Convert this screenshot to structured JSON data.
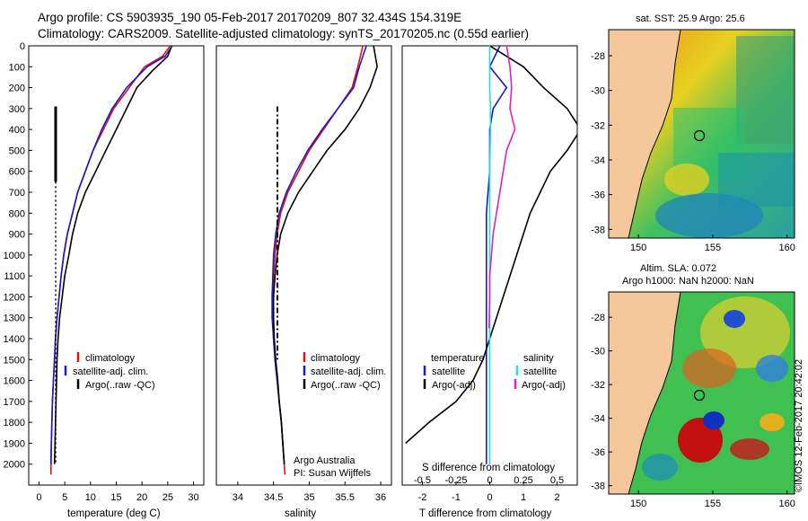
{
  "header": {
    "line1": "Argo profile: CS 5903935_190 05-Feb-2017 20170209_807 32.434S 154.319E",
    "line2": "Climatology: CARS2009. Satellite-adjusted climatology: synTS_20170205.nc (0.55d earlier)"
  },
  "colors": {
    "red": "#e01010",
    "blue": "#1a1acc",
    "black": "#000000",
    "cyan": "#22e0e0",
    "magenta": "#dd22cc",
    "land": "#f4c89a"
  },
  "chart_data": [
    {
      "type": "line",
      "name": "temperature-panel",
      "xlabel": "temperature (deg C)",
      "ylabel": "",
      "xlim": [
        -2,
        32
      ],
      "ylim": [
        2100,
        0
      ],
      "y_reversed": true,
      "xticks": [
        "0",
        "5",
        "10",
        "15",
        "20",
        "25",
        "30"
      ],
      "yticks": [
        "0",
        "100",
        "200",
        "300",
        "400",
        "500",
        "600",
        "700",
        "800",
        "900",
        "1000",
        "1100",
        "1200",
        "1300",
        "1400",
        "1500",
        "1600",
        "1700",
        "1800",
        "1900",
        "2000"
      ],
      "legend": [
        "climatology",
        "satellite-adj. clim.",
        "Argo(..raw -QC)"
      ],
      "series": [
        {
          "name": "climatology",
          "color": "red",
          "x": [
            25.5,
            24.0,
            20.5,
            17.5,
            14.5,
            12.5,
            10.5,
            9.0,
            7.5,
            6.5,
            5.5,
            4.8,
            4.3,
            3.9,
            3.5,
            3.2,
            3.0,
            2.8,
            2.6,
            2.5,
            2.4,
            2.3
          ],
          "y": [
            0,
            50,
            100,
            200,
            300,
            400,
            500,
            600,
            700,
            800,
            900,
            1000,
            1100,
            1200,
            1300,
            1400,
            1500,
            1600,
            1700,
            1800,
            1900,
            2050
          ]
        },
        {
          "name": "satellite-adj. clim.",
          "color": "blue",
          "x": [
            25.9,
            24.5,
            21.0,
            17.0,
            14.2,
            12.2,
            10.5,
            9.0,
            7.5,
            6.5,
            5.5,
            4.8,
            4.3,
            3.9,
            3.5,
            3.2,
            3.0,
            2.8,
            2.6,
            2.5,
            2.4,
            2.3
          ],
          "y": [
            0,
            50,
            100,
            200,
            300,
            400,
            500,
            600,
            700,
            800,
            900,
            1000,
            1100,
            1200,
            1300,
            1400,
            1500,
            1600,
            1700,
            1800,
            1900,
            2000
          ]
        },
        {
          "name": "Argo(..raw -QC)",
          "color": "black",
          "x": [
            25.6,
            25.0,
            22.0,
            19.0,
            17.0,
            15.0,
            13.0,
            11.0,
            9.0,
            7.5,
            6.5,
            5.8,
            5.0,
            4.5,
            4.0,
            3.7,
            3.5,
            3.4,
            3.3,
            3.2,
            3.1,
            3.0
          ],
          "y": [
            10,
            50,
            120,
            200,
            300,
            400,
            500,
            600,
            700,
            800,
            900,
            1000,
            1100,
            1200,
            1300,
            1400,
            1500,
            1600,
            1700,
            1800,
            1900,
            2000
          ]
        }
      ]
    },
    {
      "type": "line",
      "name": "salinity-panel",
      "xlabel": "salinity",
      "xlim": [
        33.7,
        36.15
      ],
      "ylim": [
        2100,
        0
      ],
      "y_reversed": true,
      "xticks": [
        "34",
        "34.5",
        "35",
        "35.5",
        "36"
      ],
      "legend": [
        "climatology",
        "satellite-adj. clim.",
        "Argo(..raw -QC)"
      ],
      "annotation": [
        "Argo Australia",
        "PI: Susan Wijffels"
      ],
      "series": [
        {
          "name": "climatology",
          "color": "red",
          "x": [
            35.75,
            35.68,
            35.6,
            35.4,
            35.2,
            35.0,
            34.85,
            34.7,
            34.6,
            34.55,
            34.52,
            34.5,
            34.49,
            34.49,
            34.5,
            34.52,
            34.55,
            34.58,
            34.61,
            34.63,
            34.65,
            34.66
          ],
          "y": [
            0,
            100,
            200,
            300,
            400,
            500,
            600,
            700,
            800,
            900,
            1000,
            1100,
            1200,
            1300,
            1400,
            1500,
            1600,
            1700,
            1800,
            1900,
            2000,
            2050
          ]
        },
        {
          "name": "satellite-adj. clim.",
          "color": "blue",
          "x": [
            35.8,
            35.7,
            35.62,
            35.4,
            35.18,
            34.98,
            34.82,
            34.68,
            34.58,
            34.53,
            34.5,
            34.49,
            34.48,
            34.48,
            34.5,
            34.52,
            34.55,
            34.58,
            34.61,
            34.63,
            34.65
          ],
          "y": [
            0,
            100,
            200,
            300,
            400,
            500,
            600,
            700,
            800,
            900,
            1000,
            1100,
            1200,
            1300,
            1400,
            1500,
            1600,
            1700,
            1800,
            1900,
            2000
          ]
        },
        {
          "name": "Argo(..raw -QC)",
          "color": "black",
          "x": [
            35.9,
            35.95,
            35.85,
            35.7,
            35.5,
            35.25,
            35.05,
            34.85,
            34.7,
            34.6,
            34.55,
            34.52,
            34.5,
            34.5,
            34.51,
            34.53,
            34.56,
            34.58,
            34.61,
            34.63,
            34.65
          ],
          "y": [
            0,
            100,
            200,
            300,
            400,
            500,
            600,
            700,
            800,
            900,
            1000,
            1100,
            1200,
            1300,
            1400,
            1500,
            1600,
            1700,
            1800,
            1900,
            2000
          ]
        }
      ]
    },
    {
      "type": "line",
      "name": "difference-panel",
      "xlabel": "T difference from climatology",
      "xlabel2": "S difference from climatology",
      "xlim": [
        -2.6,
        2.6
      ],
      "ylim": [
        2100,
        0
      ],
      "y_reversed": true,
      "xticks": [
        "-2",
        "-1",
        "0",
        "1",
        "2"
      ],
      "xticks2": [
        "-0.5",
        "-0.25",
        "0",
        "0.25",
        "0.5"
      ],
      "legend": [
        "temperature",
        "satellite",
        "Argo(-adj)",
        "salinity",
        "satellite",
        "Argo(-adj)"
      ],
      "series": [
        {
          "name": "T satellite",
          "color": "blue",
          "x": [
            0.3,
            0.0,
            0.5,
            0.1,
            0.0,
            0.0,
            0.0,
            -0.05,
            -0.1,
            -0.1,
            -0.1,
            -0.1,
            -0.1,
            -0.1,
            -0.1,
            -0.1,
            -0.1,
            -0.1,
            -0.1,
            -0.1,
            -0.1
          ],
          "y": [
            0,
            100,
            200,
            300,
            400,
            500,
            600,
            700,
            800,
            900,
            1000,
            1100,
            1200,
            1300,
            1400,
            1500,
            1600,
            1700,
            1800,
            1900,
            2000
          ]
        },
        {
          "name": "T Argo(-adj)",
          "color": "black",
          "x": [
            0.0,
            1.0,
            1.6,
            2.3,
            2.7,
            2.3,
            1.8,
            1.5,
            1.2,
            1.0,
            0.8,
            0.6,
            0.4,
            0.2,
            0.0,
            -0.2,
            -0.5,
            -1.0,
            -1.8,
            -2.5
          ],
          "y": [
            0,
            100,
            200,
            300,
            400,
            500,
            600,
            700,
            800,
            900,
            1000,
            1100,
            1200,
            1300,
            1400,
            1500,
            1600,
            1700,
            1800,
            1900
          ]
        },
        {
          "name": "S satellite",
          "color": "cyan",
          "x": [
            0.0,
            0.0,
            0.0,
            0.02,
            0.02,
            0.01,
            0.0,
            0.0,
            0.0,
            0.0,
            0.0,
            0.0,
            0.0,
            0.0,
            0.0,
            0.0,
            0.0,
            0.0,
            0.0,
            0.0,
            0.0
          ],
          "y": [
            0,
            100,
            200,
            300,
            400,
            500,
            600,
            700,
            800,
            900,
            1000,
            1100,
            1200,
            1300,
            1400,
            1500,
            1600,
            1700,
            1800,
            1900,
            2000
          ]
        },
        {
          "name": "S Argo(-adj)",
          "color": "magenta",
          "x": [
            0.5,
            0.6,
            0.65,
            0.6,
            0.75,
            0.5,
            0.4,
            0.3,
            0.2,
            0.1,
            0.05,
            0.0,
            0.0,
            -0.02
          ],
          "y": [
            0,
            100,
            200,
            300,
            400,
            500,
            600,
            700,
            800,
            900,
            1000,
            1100,
            1200,
            1350
          ]
        }
      ]
    },
    {
      "type": "heatmap",
      "name": "sst-map",
      "title": "sat. SST: 25.9 Argo: 25.6",
      "xticks": [
        "150",
        "155",
        "160"
      ],
      "yticks": [
        "-28",
        "-30",
        "-32",
        "-34",
        "-36",
        "-38"
      ],
      "xlim": [
        148,
        160.5
      ],
      "ylim": [
        -38.5,
        -26.5
      ],
      "marker": {
        "lon": 154.319,
        "lat": -32.434
      }
    },
    {
      "type": "heatmap",
      "name": "sla-map",
      "title": [
        "Altim. SLA: 0.072",
        "Argo h1000: NaN h2000: NaN"
      ],
      "xticks": [
        "150",
        "155",
        "160"
      ],
      "yticks": [
        "-28",
        "-30",
        "-32",
        "-34",
        "-36",
        "-38"
      ],
      "xlim": [
        148,
        160.5
      ],
      "ylim": [
        -38.5,
        -26.5
      ],
      "marker": {
        "lon": 154.319,
        "lat": -32.434
      },
      "side_label": "©IMOS 12-Feb-2017 20:42:02"
    }
  ]
}
